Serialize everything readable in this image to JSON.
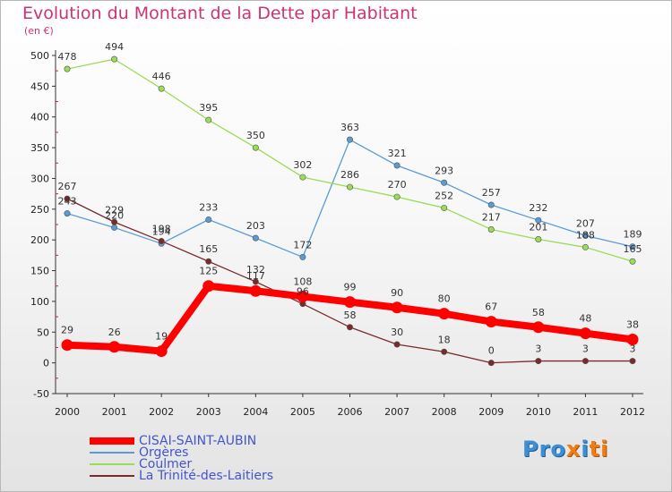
{
  "header": {
    "title": "Evolution du Montant de la Dette par Habitant",
    "unit": "(en €)"
  },
  "logo": {
    "pre": "Pro",
    "accent": "x",
    "mid": "i",
    "post": "ti",
    "color_main": "#3d8fd4",
    "color_accent": "#ef7d12"
  },
  "chart_data": {
    "type": "line",
    "title": "Evolution du Montant de la Dette par Habitant",
    "ylabel": "(en €)",
    "xlabel": "",
    "x": [
      "2000",
      "2001",
      "2002",
      "2003",
      "2004",
      "2005",
      "2006",
      "2007",
      "2008",
      "2009",
      "2010",
      "2011",
      "2012"
    ],
    "ylim": [
      -50,
      500
    ],
    "yticks": [
      -50,
      0,
      50,
      100,
      150,
      200,
      250,
      300,
      350,
      400,
      450,
      500
    ],
    "grid": false,
    "legend_position": "bottom-left",
    "series": [
      {
        "name": "CISAI-SAINT-AUBIN",
        "color": "#ff0000",
        "values": [
          29,
          26,
          19,
          125,
          117,
          108,
          99,
          90,
          80,
          67,
          58,
          48,
          38
        ]
      },
      {
        "name": "Orgères",
        "color": "#5b9bd5",
        "values": [
          243,
          220,
          194,
          233,
          203,
          172,
          363,
          321,
          293,
          257,
          232,
          207,
          189
        ]
      },
      {
        "name": "Coulmer",
        "color": "#99dd55",
        "values": [
          478,
          494,
          446,
          395,
          350,
          302,
          286,
          270,
          252,
          217,
          201,
          188,
          165
        ]
      },
      {
        "name": "La Trinité-des-Laitiers",
        "color": "#7a2a2a",
        "values": [
          267,
          229,
          198,
          165,
          132,
          96,
          58,
          30,
          18,
          0,
          3,
          3,
          3
        ]
      }
    ]
  }
}
